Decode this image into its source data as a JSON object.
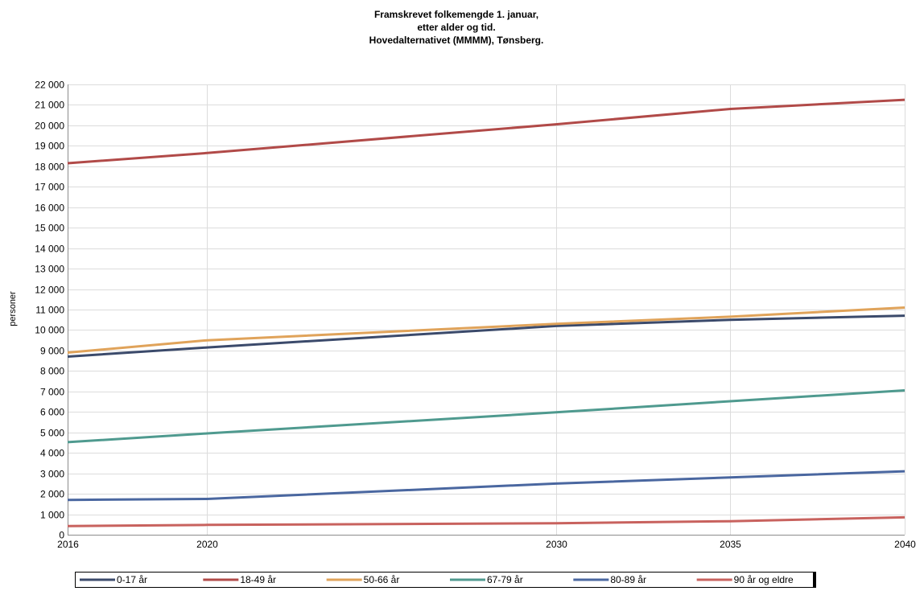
{
  "chart_data": {
    "type": "line",
    "title_lines": [
      "Framskrevet folkemengde 1. januar,",
      "etter alder og tid.",
      "Hovedalternativet (MMMM), Tønsberg."
    ],
    "ylabel": "personer",
    "xlabel": "",
    "x_ticks": [
      2016,
      2020,
      2030,
      2035,
      2040
    ],
    "x_ticks_text": [
      "2016",
      "2020",
      "2030",
      "2035",
      "2040"
    ],
    "xlim": [
      2016,
      2040
    ],
    "ylim": [
      0,
      22000
    ],
    "y_ticks": [
      0,
      1000,
      2000,
      3000,
      4000,
      5000,
      6000,
      7000,
      8000,
      9000,
      10000,
      11000,
      12000,
      13000,
      14000,
      15000,
      16000,
      17000,
      18000,
      19000,
      20000,
      21000,
      22000
    ],
    "y_ticks_text": [
      "0",
      "1 000",
      "2 000",
      "3 000",
      "4 000",
      "5 000",
      "6 000",
      "7 000",
      "8 000",
      "9 000",
      "10 000",
      "11 000",
      "12 000",
      "13 000",
      "14 000",
      "15 000",
      "16 000",
      "17 000",
      "18 000",
      "19 000",
      "20 000",
      "21 000",
      "22 000"
    ],
    "grid": true,
    "legend_position": "bottom",
    "x": [
      2016,
      2020,
      2030,
      2035,
      2040
    ],
    "series": [
      {
        "name": "0-17 år",
        "color": "#3b4a6b",
        "values": [
          8700,
          9150,
          10200,
          10500,
          10700
        ]
      },
      {
        "name": "18-49 år",
        "color": "#b14a48",
        "values": [
          18150,
          18650,
          20050,
          20800,
          21250
        ]
      },
      {
        "name": "50-66 år",
        "color": "#e0a35a",
        "values": [
          8900,
          9500,
          10300,
          10650,
          11100
        ]
      },
      {
        "name": "67-79 år",
        "color": "#4f9a8f",
        "values": [
          4520,
          4950,
          5980,
          6520,
          7050
        ]
      },
      {
        "name": "80-89 år",
        "color": "#4a67a0",
        "values": [
          1700,
          1750,
          2500,
          2800,
          3100
        ]
      },
      {
        "name": "90 år og eldre",
        "color": "#c8625e",
        "values": [
          420,
          480,
          560,
          660,
          850
        ]
      }
    ]
  }
}
